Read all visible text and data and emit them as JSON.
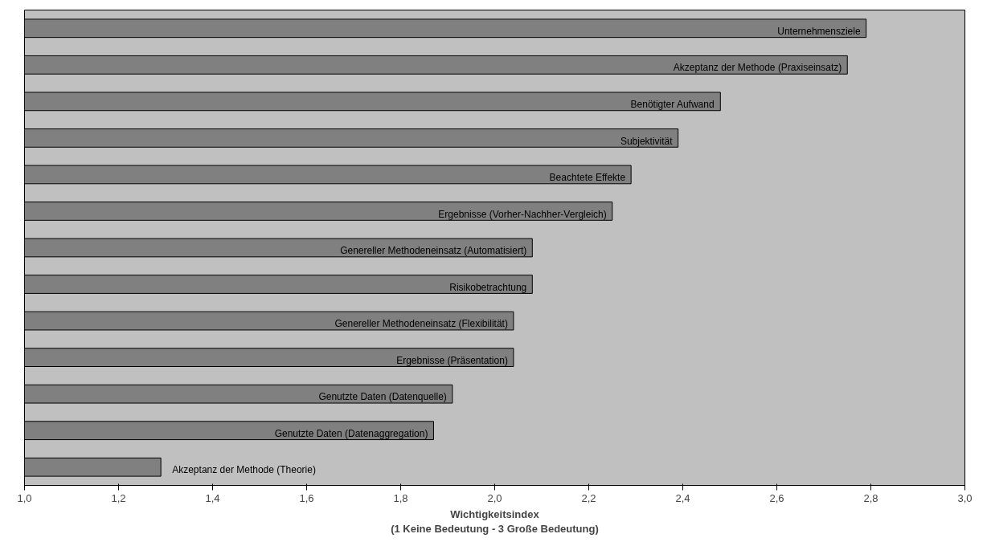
{
  "chart_data": {
    "type": "bar",
    "orientation": "horizontal",
    "categories": [
      "Unternehmensziele",
      "Akzeptanz der Methode (Praxiseinsatz)",
      "Benötigter Aufwand",
      "Subjektivität",
      "Beachtete Effekte",
      "Ergebnisse (Vorher-Nachher-Vergleich)",
      "Genereller Methodeneinsatz (Automatisiert)",
      "Risikobetrachtung",
      "Genereller Methodeneinsatz (Flexibilität)",
      "Ergebnisse (Präsentation)",
      "Genutzte Daten (Datenquelle)",
      "Genutzte Daten (Datenaggregation)",
      "Akzeptanz der Methode (Theorie)"
    ],
    "values": [
      2.79,
      2.75,
      2.48,
      2.39,
      2.29,
      2.25,
      2.08,
      2.08,
      2.04,
      2.04,
      1.91,
      1.87,
      1.29
    ],
    "color": "#808080",
    "xlabel": "Wichtigkeitsindex\n(1 Keine Bedeutung - 3 Große Bedeutung)",
    "xlim": [
      1.0,
      3.0
    ],
    "xticks": [
      {
        "value": 1.0,
        "label": "1,0"
      },
      {
        "value": 1.2,
        "label": "1,2"
      },
      {
        "value": 1.4,
        "label": "1,4"
      },
      {
        "value": 1.6,
        "label": "1,6"
      },
      {
        "value": 1.8,
        "label": "1,8"
      },
      {
        "value": 2.0,
        "label": "2,0"
      },
      {
        "value": 2.2,
        "label": "2,2"
      },
      {
        "value": 2.4,
        "label": "2,4"
      },
      {
        "value": 2.6,
        "label": "2,6"
      },
      {
        "value": 2.8,
        "label": "2,8"
      },
      {
        "value": 3.0,
        "label": "3,0"
      }
    ],
    "tick_labels": "x",
    "grid": false
  }
}
